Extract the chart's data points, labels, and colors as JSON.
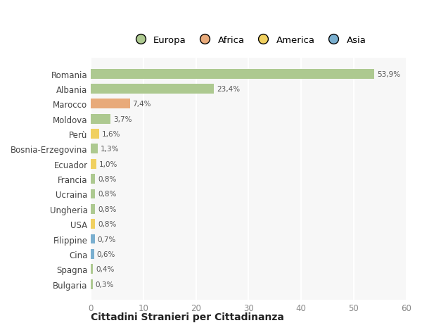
{
  "countries": [
    "Romania",
    "Albania",
    "Marocco",
    "Moldova",
    "Perù",
    "Bosnia-Erzegovina",
    "Ecuador",
    "Francia",
    "Ucraina",
    "Ungheria",
    "USA",
    "Filippine",
    "Cina",
    "Spagna",
    "Bulgaria"
  ],
  "values": [
    53.9,
    23.4,
    7.4,
    3.7,
    1.6,
    1.3,
    1.0,
    0.8,
    0.8,
    0.8,
    0.8,
    0.7,
    0.6,
    0.4,
    0.3
  ],
  "labels": [
    "53,9%",
    "23,4%",
    "7,4%",
    "3,7%",
    "1,6%",
    "1,3%",
    "1,0%",
    "0,8%",
    "0,8%",
    "0,8%",
    "0,8%",
    "0,7%",
    "0,6%",
    "0,4%",
    "0,3%"
  ],
  "continents": [
    "Europa",
    "Europa",
    "Africa",
    "Europa",
    "America",
    "Europa",
    "America",
    "Europa",
    "Europa",
    "Europa",
    "America",
    "Asia",
    "Asia",
    "Europa",
    "Europa"
  ],
  "colors": {
    "Europa": "#adc990",
    "Africa": "#e8aa7a",
    "America": "#f0d060",
    "Asia": "#7aafcf"
  },
  "legend_order": [
    "Europa",
    "Africa",
    "America",
    "Asia"
  ],
  "legend_colors": [
    "#adc990",
    "#e8aa7a",
    "#f0d060",
    "#7aafcf"
  ],
  "background_color": "#ffffff",
  "plot_bg_color": "#f7f7f7",
  "title": "Cittadini Stranieri per Cittadinanza",
  "xlim": [
    0,
    60
  ],
  "xticks": [
    0,
    10,
    20,
    30,
    40,
    50,
    60
  ]
}
